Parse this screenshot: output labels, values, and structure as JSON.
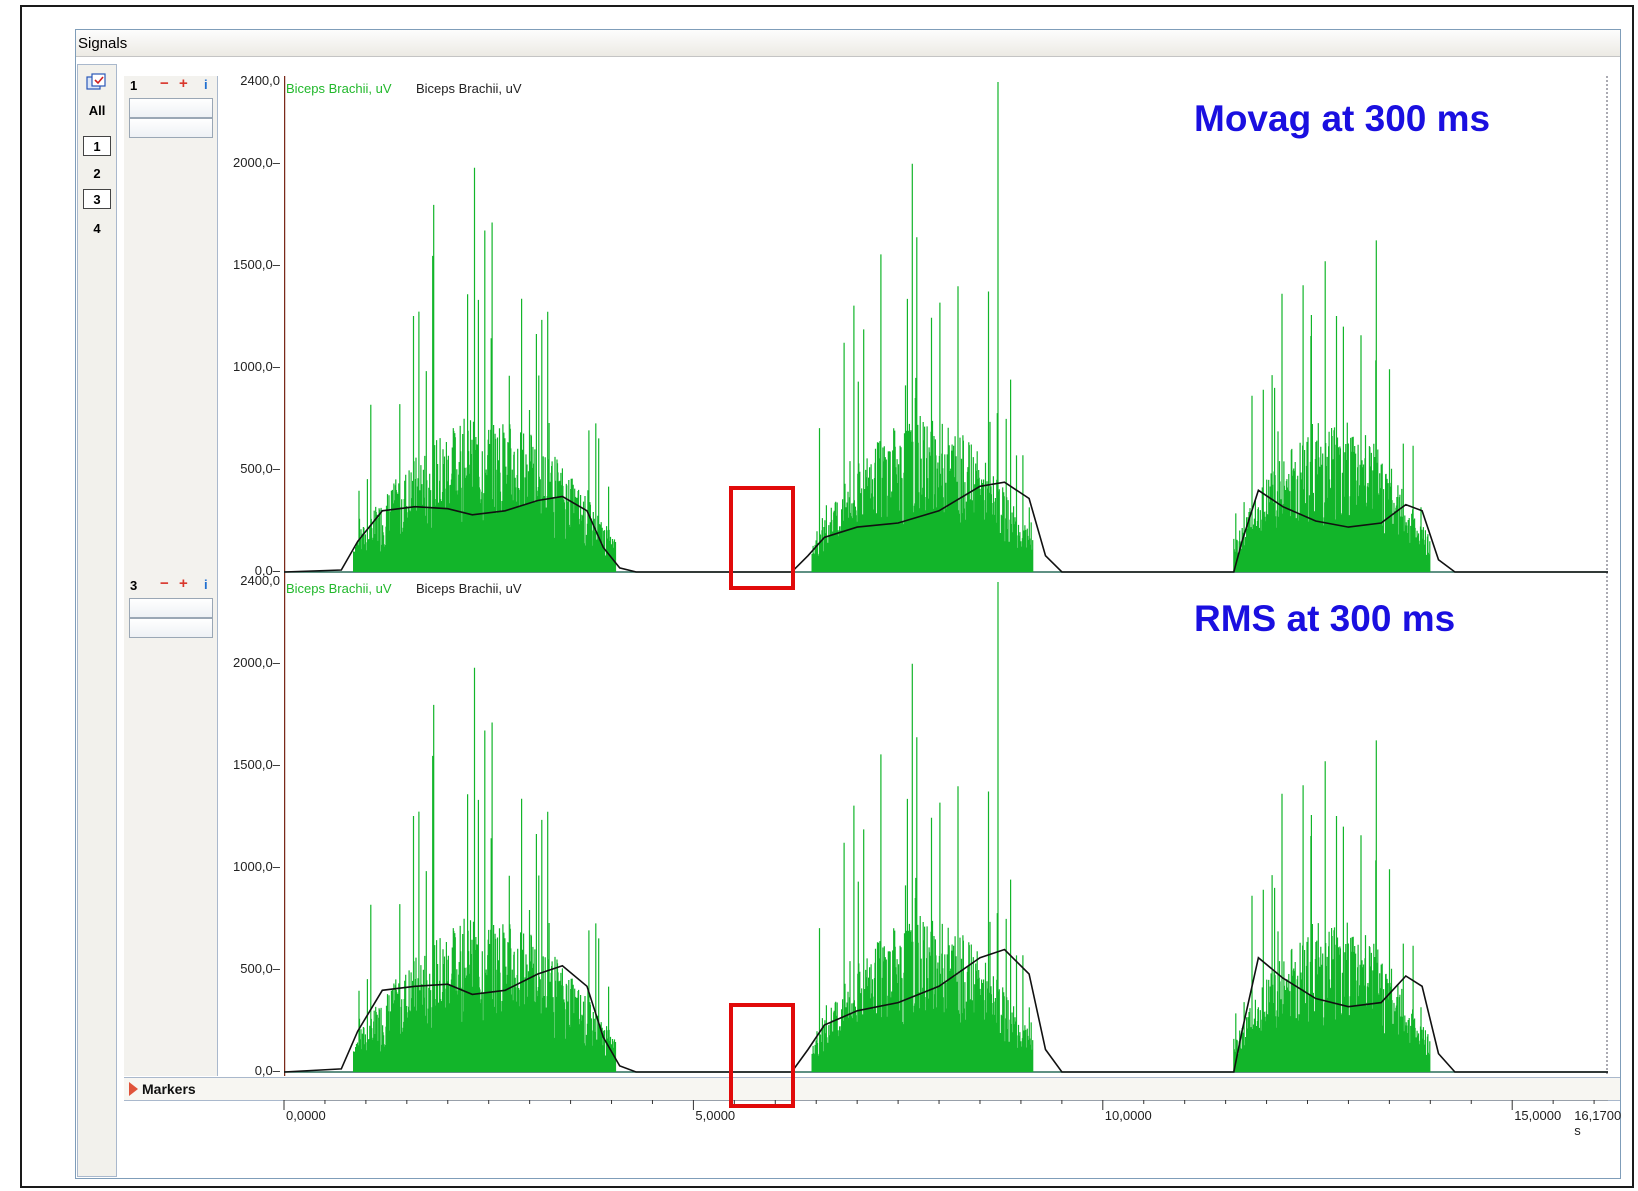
{
  "window": {
    "title": "Signals"
  },
  "sidebar": {
    "all_label": "All",
    "channels": [
      {
        "label": "1",
        "selected": true
      },
      {
        "label": "2",
        "selected": false
      },
      {
        "label": "3",
        "selected": true
      },
      {
        "label": "4",
        "selected": false
      }
    ]
  },
  "panels": [
    {
      "channel_number": "1",
      "legend_raw": "Biceps Brachii, uV",
      "legend_processed": "Biceps Brachii, uV",
      "overlay_text": "Movag at 300 ms",
      "y_ticks": [
        "2400,0",
        "2000,0",
        "1500,0",
        "1000,0",
        "500,0",
        "0,0"
      ]
    },
    {
      "channel_number": "3",
      "legend_raw": "Biceps Brachii, uV",
      "legend_processed": "Biceps Brachii, uV",
      "overlay_text": "RMS at 300 ms",
      "y_ticks": [
        "2400,0",
        "2000,0",
        "1500,0",
        "1000,0",
        "500,0",
        "0,0"
      ]
    }
  ],
  "markers": {
    "label": "Markers"
  },
  "time_axis": {
    "ticks": [
      "0,0000",
      "5,0000",
      "10,0000",
      "15,0000"
    ],
    "end_label": "16,1700 s"
  },
  "colors": {
    "raw_signal": "#12b52a",
    "envelope": "#111111",
    "highlight": "#e10a0a",
    "overlay_text": "#1a0fe0"
  },
  "chart_data": [
    {
      "type": "line",
      "title": "Movag at 300 ms",
      "ylabel": "Biceps Brachii, uV",
      "xlabel": "s",
      "xlim": [
        0,
        16.17
      ],
      "ylim": [
        0,
        2400
      ],
      "series": [
        {
          "name": "Biceps Brachii, uV",
          "x": [
            0,
            0.7,
            0.9,
            1.2,
            1.6,
            2.0,
            2.3,
            2.7,
            3.1,
            3.4,
            3.7,
            3.9,
            4.1,
            4.3,
            6.2,
            6.4,
            6.6,
            7.0,
            7.5,
            8.0,
            8.5,
            8.8,
            9.1,
            9.3,
            9.5,
            11.6,
            11.7,
            11.9,
            12.2,
            12.6,
            13.0,
            13.4,
            13.7,
            13.9,
            14.1,
            14.3,
            16.17
          ],
          "y": [
            0,
            10,
            150,
            300,
            320,
            310,
            280,
            300,
            350,
            370,
            300,
            120,
            20,
            0,
            0,
            80,
            170,
            220,
            240,
            300,
            420,
            440,
            360,
            80,
            0,
            0,
            150,
            400,
            320,
            250,
            220,
            240,
            330,
            300,
            60,
            0,
            0
          ]
        }
      ]
    },
    {
      "type": "line",
      "title": "RMS at 300 ms",
      "ylabel": "Biceps Brachii, uV",
      "xlabel": "s",
      "xlim": [
        0,
        16.17
      ],
      "ylim": [
        0,
        2400
      ],
      "series": [
        {
          "name": "Biceps Brachii, uV",
          "x": [
            0,
            0.7,
            0.9,
            1.2,
            1.6,
            2.0,
            2.3,
            2.7,
            3.1,
            3.4,
            3.7,
            3.9,
            4.1,
            4.3,
            6.2,
            6.4,
            6.6,
            7.0,
            7.5,
            8.0,
            8.5,
            8.8,
            9.1,
            9.3,
            9.5,
            11.6,
            11.7,
            11.9,
            12.2,
            12.6,
            13.0,
            13.4,
            13.7,
            13.9,
            14.1,
            14.3,
            16.17
          ],
          "y": [
            0,
            15,
            200,
            400,
            420,
            430,
            380,
            400,
            480,
            520,
            420,
            170,
            30,
            0,
            0,
            110,
            230,
            300,
            340,
            420,
            560,
            600,
            480,
            110,
            0,
            0,
            200,
            560,
            460,
            360,
            320,
            340,
            470,
            420,
            90,
            0,
            0
          ]
        }
      ]
    }
  ]
}
